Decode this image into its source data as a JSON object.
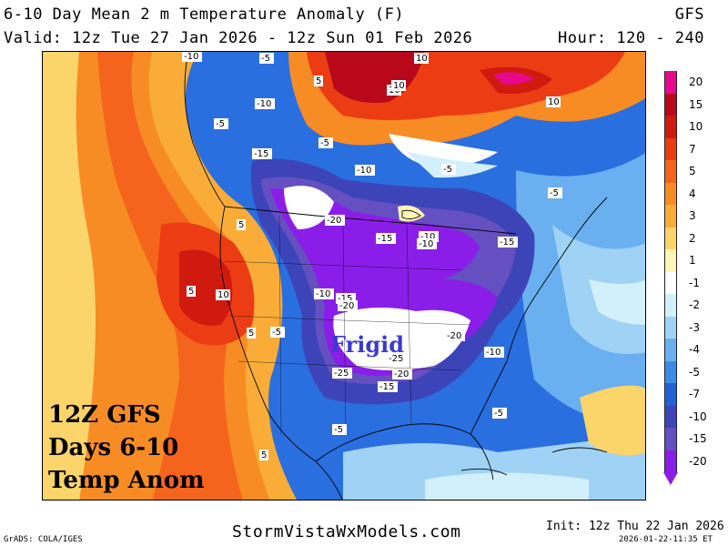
{
  "header": {
    "title": "6-10 Day Mean 2 m Temperature Anomaly (F)",
    "model": "GFS",
    "valid": "Valid: 12z Tue 27 Jan 2026 - 12z Sun 01 Feb 2026",
    "hours": "Hour: 120 - 240"
  },
  "overlay": {
    "line1": "12Z GFS",
    "line2": "Days 6-10",
    "line3": "Temp Anom",
    "region_label": "Frigid"
  },
  "colorbar": {
    "levels": [
      {
        "label": "20",
        "color": "#e8088c"
      },
      {
        "label": "15",
        "color": "#b8081a"
      },
      {
        "label": "10",
        "color": "#d01a10"
      },
      {
        "label": "7",
        "color": "#ec3c14"
      },
      {
        "label": "5",
        "color": "#f5641c"
      },
      {
        "label": "4",
        "color": "#f88c24"
      },
      {
        "label": "3",
        "color": "#f9ad38"
      },
      {
        "label": "2",
        "color": "#fbd46a"
      },
      {
        "label": "1",
        "color": "#fff4b4"
      },
      {
        "label": "-1",
        "color": "#ffffff"
      },
      {
        "label": "-2",
        "color": "#d2f0fb"
      },
      {
        "label": "-3",
        "color": "#a0d2f6"
      },
      {
        "label": "-4",
        "color": "#6ab0f0"
      },
      {
        "label": "-5",
        "color": "#3c8be6"
      },
      {
        "label": "-7",
        "color": "#2260d6"
      },
      {
        "label": "-10",
        "color": "#3c44b8"
      },
      {
        "label": "-15",
        "color": "#6450c0"
      },
      {
        "label": "-20",
        "color": "#8a1ee8"
      }
    ]
  },
  "contour_labels": [
    {
      "text": "-10"
    },
    {
      "text": "-5"
    },
    {
      "text": "10"
    },
    {
      "text": "5"
    },
    {
      "text": "10"
    },
    {
      "text": "10"
    },
    {
      "text": "-10"
    },
    {
      "text": "-5"
    },
    {
      "text": "-15"
    },
    {
      "text": "-5"
    },
    {
      "text": "-10"
    },
    {
      "text": "-5"
    },
    {
      "text": "-5"
    },
    {
      "text": "-20"
    },
    {
      "text": "-15"
    },
    {
      "text": "-10"
    },
    {
      "text": "-10"
    },
    {
      "text": "-15"
    },
    {
      "text": "5"
    },
    {
      "text": "10"
    },
    {
      "text": "5"
    },
    {
      "text": "-5"
    },
    {
      "text": "5"
    },
    {
      "text": "-10"
    },
    {
      "text": "-15"
    },
    {
      "text": "-20"
    },
    {
      "text": "-20"
    },
    {
      "text": "-25"
    },
    {
      "text": "-25"
    },
    {
      "text": "-20"
    },
    {
      "text": "-15"
    },
    {
      "text": "-10"
    },
    {
      "text": "-5"
    },
    {
      "text": "-5"
    },
    {
      "text": "5"
    },
    {
      "text": "10"
    }
  ],
  "footer": {
    "grads": "GrADS: COLA/IGES",
    "site": "StormVistaWxModels.com",
    "init": "Init: 12z Thu 22 Jan 2026",
    "stamp": "2026-01-22-11:35 ET"
  }
}
